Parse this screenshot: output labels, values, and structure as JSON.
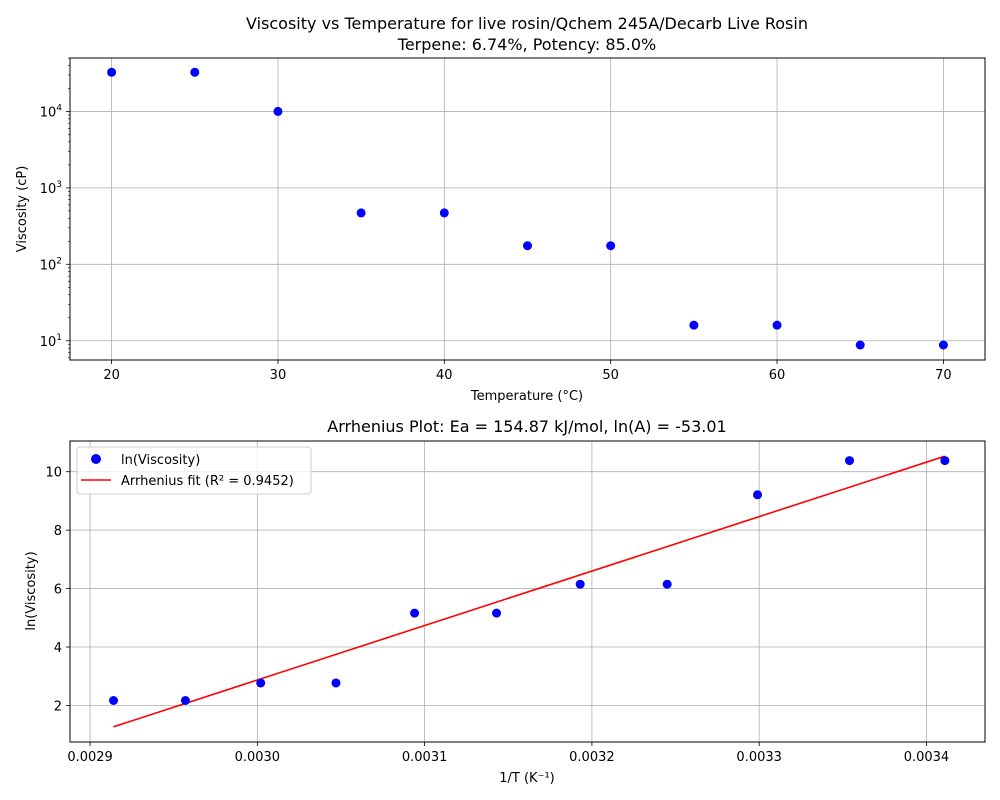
{
  "chart_data": [
    {
      "type": "scatter",
      "title_line1": "Viscosity vs Temperature for live rosin/Qchem 245A/Decarb Live Rosin",
      "title_line2": "Terpene: 6.74%, Potency: 85.0%",
      "xlabel": "Temperature (°C)",
      "ylabel": "Viscosity (cP)",
      "xlim": [
        17.5,
        72.5
      ],
      "ylim": [
        5.6,
        50000
      ],
      "yscale": "log",
      "grid": true,
      "x_ticks": [
        20,
        30,
        40,
        50,
        60,
        70
      ],
      "x_tick_labels": [
        "20",
        "30",
        "40",
        "50",
        "60",
        "70"
      ],
      "y_ticks": [
        10,
        100,
        1000,
        10000
      ],
      "y_tick_bases": [
        "10",
        "10",
        "10",
        "10"
      ],
      "y_tick_exps": [
        "1",
        "2",
        "3",
        "4"
      ],
      "series": [
        {
          "color": "#0000ff",
          "x": [
            20,
            25,
            30,
            35,
            40,
            45,
            50,
            55,
            60,
            65,
            70
          ],
          "y": [
            32500,
            32500,
            10000,
            470,
            470,
            175,
            175,
            16,
            16,
            8.8,
            8.8
          ]
        }
      ]
    },
    {
      "type": "scatter",
      "title": "Arrhenius Plot: Ea = 154.87 kJ/mol, ln(A) = -53.01",
      "xlabel": "1/T (K⁻¹)",
      "ylabel": "ln(Viscosity)",
      "xlim": [
        0.002888,
        0.003435
      ],
      "ylim": [
        0.75,
        11.05
      ],
      "grid": true,
      "legend_position": "upper-left",
      "x_ticks": [
        0.0029,
        0.003,
        0.0031,
        0.0032,
        0.0033,
        0.0034
      ],
      "x_tick_labels": [
        "0.0029",
        "0.0030",
        "0.0031",
        "0.0032",
        "0.0033",
        "0.0034"
      ],
      "y_ticks": [
        2,
        4,
        6,
        8,
        10
      ],
      "y_tick_labels": [
        "2",
        "4",
        "6",
        "8",
        "10"
      ],
      "series": [
        {
          "name": "ln(Viscosity)",
          "kind": "scatter",
          "color": "#0000ff",
          "x": [
            0.002914,
            0.002957,
            0.003002,
            0.003047,
            0.003094,
            0.003143,
            0.003193,
            0.003245,
            0.003299,
            0.003354,
            0.003411
          ],
          "y": [
            2.17,
            2.17,
            2.77,
            2.77,
            5.16,
            5.16,
            6.15,
            6.15,
            9.21,
            10.38,
            10.38
          ]
        },
        {
          "name": "Arrhenius fit (R² = 0.9452)",
          "kind": "line",
          "color": "#ff0000",
          "x": [
            0.002914,
            0.003411
          ],
          "y": [
            1.27,
            10.53
          ]
        }
      ]
    }
  ]
}
